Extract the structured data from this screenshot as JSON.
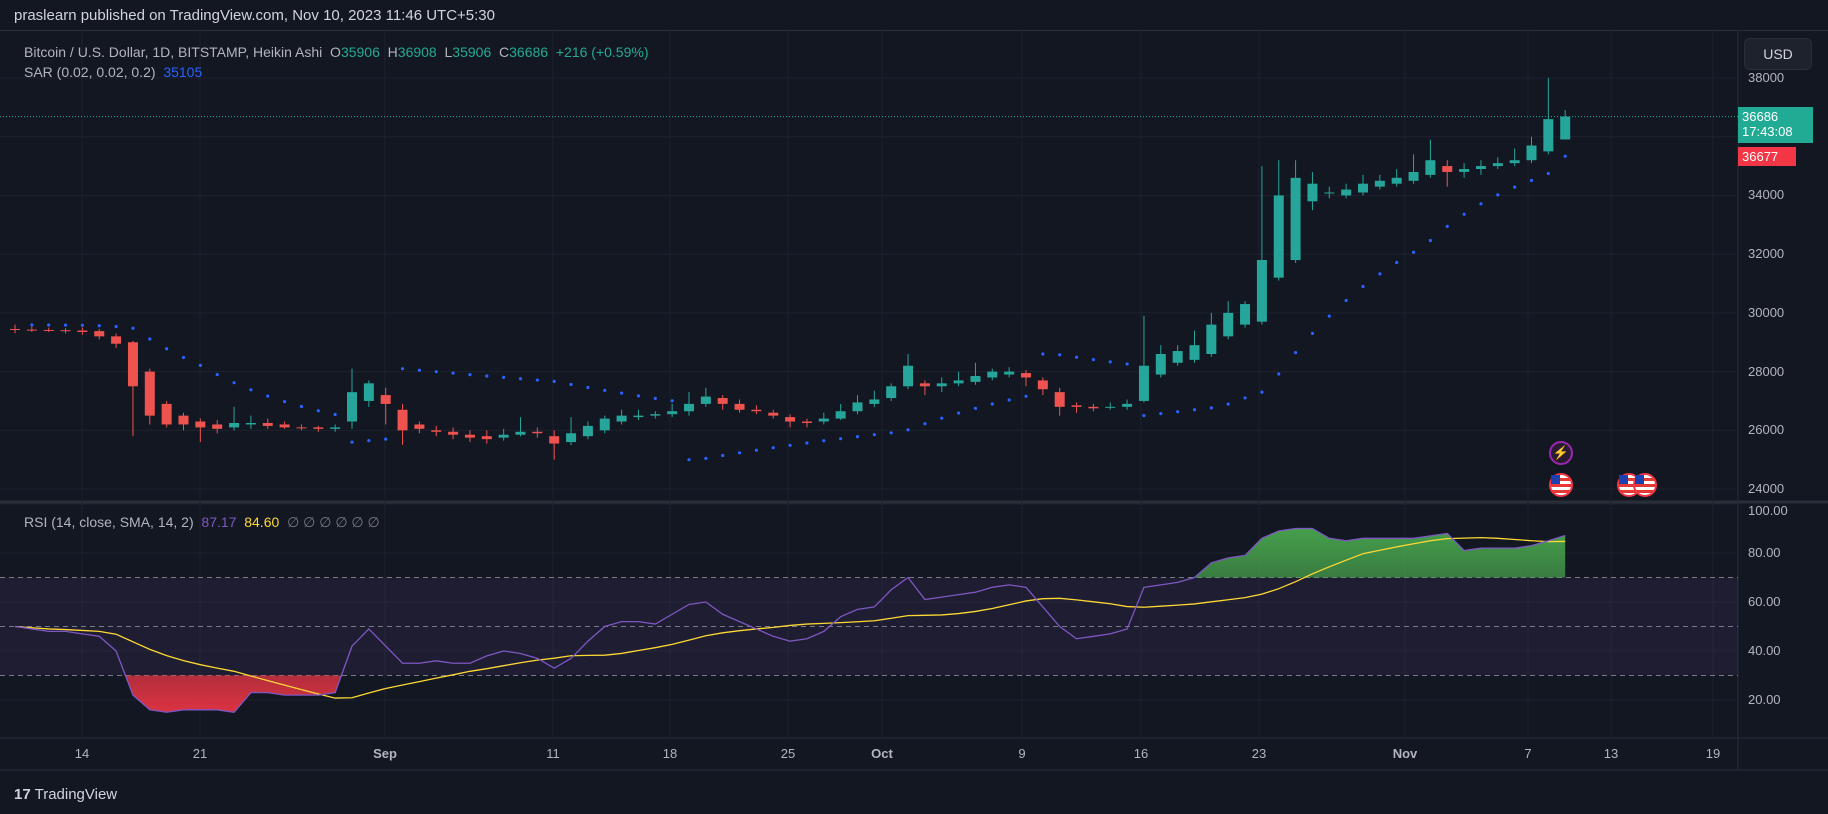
{
  "header": {
    "published": "praslearn published on TradingView.com, Nov 10, 2023 11:46 UTC+5:30"
  },
  "legend": {
    "symbol": "Bitcoin / U.S. Dollar, 1D, BITSTAMP, Heikin Ashi",
    "o_label": "O",
    "o": "35906",
    "h_label": "H",
    "h": "36908",
    "l_label": "L",
    "l": "35906",
    "c_label": "C",
    "c": "36686",
    "change": "+216 (+0.59%)",
    "sar_label": "SAR (0.02, 0.02, 0.2)",
    "sar_value": "35105",
    "rsi_label": "RSI (14, close, SMA, 14, 2)",
    "rsi_value": "87.17",
    "rsi_sma_value": "84.60",
    "rsi_empty": "∅  ∅  ∅  ∅  ∅  ∅"
  },
  "price_axis": {
    "currency": "USD",
    "ticks": [
      "38000",
      "34000",
      "32000",
      "30000",
      "28000",
      "26000",
      "24000"
    ],
    "last_price": "36686",
    "countdown": "17:43:08",
    "prev_close": "36677"
  },
  "rsi_axis": {
    "ticks": [
      "100.00",
      "80.00",
      "60.00",
      "40.00",
      "20.00"
    ]
  },
  "time_axis": {
    "labels": [
      "14",
      "21",
      "Sep",
      "11",
      "18",
      "25",
      "Oct",
      "9",
      "16",
      "23",
      "Nov",
      "7",
      "13",
      "19"
    ]
  },
  "footer": {
    "brand": "TradingView"
  },
  "colors": {
    "up": "#26a69a",
    "down": "#ef5350",
    "sar": "#2962ff",
    "rsi": "#7e57c2",
    "sma": "#fdd835"
  },
  "events": [
    "lightning-icon",
    "us-flag-icon",
    "us-flag-icon",
    "us-flag-icon"
  ],
  "chart_data": {
    "type": "candlestick",
    "title": "Bitcoin / U.S. Dollar, 1D, BITSTAMP, Heikin Ashi",
    "start_date": "Aug 10",
    "end_date": "Nov 10",
    "ylim": [
      23500,
      38600
    ],
    "candles_ohlc": [
      [
        29450,
        29600,
        29300,
        29420
      ],
      [
        29430,
        29550,
        29350,
        29400
      ],
      [
        29420,
        29500,
        29350,
        29410
      ],
      [
        29410,
        29480,
        29300,
        29380
      ],
      [
        29400,
        29500,
        29250,
        29350
      ],
      [
        29380,
        29450,
        29100,
        29200
      ],
      [
        29200,
        29300,
        28800,
        28950
      ],
      [
        29000,
        29050,
        25800,
        27500
      ],
      [
        28000,
        28100,
        26200,
        26500
      ],
      [
        26900,
        27000,
        26100,
        26200
      ],
      [
        26500,
        26600,
        26000,
        26200
      ],
      [
        26300,
        26400,
        25600,
        26100
      ],
      [
        26200,
        26350,
        25900,
        26050
      ],
      [
        26100,
        26800,
        26000,
        26250
      ],
      [
        26200,
        26500,
        26050,
        26250
      ],
      [
        26250,
        26400,
        26050,
        26150
      ],
      [
        26200,
        26300,
        26050,
        26100
      ],
      [
        26100,
        26200,
        26000,
        26080
      ],
      [
        26100,
        26150,
        25950,
        26050
      ],
      [
        26050,
        26200,
        25950,
        26100
      ],
      [
        26300,
        28100,
        26050,
        27300
      ],
      [
        27000,
        27700,
        26800,
        27600
      ],
      [
        27200,
        27450,
        26200,
        26900
      ],
      [
        26700,
        26900,
        25500,
        26000
      ],
      [
        26200,
        26300,
        25900,
        26050
      ],
      [
        26000,
        26150,
        25800,
        25950
      ],
      [
        25950,
        26100,
        25700,
        25850
      ],
      [
        25850,
        26000,
        25600,
        25750
      ],
      [
        25800,
        26000,
        25550,
        25700
      ],
      [
        25750,
        26050,
        25650,
        25850
      ],
      [
        25850,
        26450,
        25800,
        25950
      ],
      [
        25950,
        26100,
        25750,
        25900
      ],
      [
        25800,
        26000,
        25000,
        25550
      ],
      [
        25600,
        26450,
        25500,
        25900
      ],
      [
        25800,
        26300,
        25700,
        26150
      ],
      [
        26000,
        26500,
        25900,
        26400
      ],
      [
        26300,
        26700,
        26200,
        26500
      ],
      [
        26450,
        26700,
        26350,
        26500
      ],
      [
        26500,
        26650,
        26400,
        26550
      ],
      [
        26550,
        26900,
        26450,
        26650
      ],
      [
        26650,
        27300,
        26500,
        26900
      ],
      [
        26900,
        27450,
        26800,
        27150
      ],
      [
        27100,
        27200,
        26700,
        26900
      ],
      [
        26900,
        27050,
        26600,
        26700
      ],
      [
        26700,
        26850,
        26550,
        26650
      ],
      [
        26600,
        26700,
        26400,
        26500
      ],
      [
        26450,
        26550,
        26100,
        26300
      ],
      [
        26300,
        26400,
        26100,
        26250
      ],
      [
        26300,
        26600,
        26200,
        26400
      ],
      [
        26400,
        26900,
        26350,
        26650
      ],
      [
        26650,
        27200,
        26550,
        26950
      ],
      [
        26900,
        27350,
        26800,
        27050
      ],
      [
        27100,
        27600,
        27000,
        27500
      ],
      [
        27500,
        28600,
        27400,
        28200
      ],
      [
        27600,
        27700,
        27200,
        27500
      ],
      [
        27500,
        27800,
        27300,
        27600
      ],
      [
        27600,
        28000,
        27500,
        27700
      ],
      [
        27650,
        28300,
        27550,
        27850
      ],
      [
        27800,
        28100,
        27700,
        28000
      ],
      [
        27900,
        28150,
        27800,
        28000
      ],
      [
        27950,
        28050,
        27500,
        27800
      ],
      [
        27700,
        27800,
        27200,
        27400
      ],
      [
        27300,
        27450,
        26500,
        26800
      ],
      [
        26850,
        26950,
        26600,
        26800
      ],
      [
        26800,
        26900,
        26650,
        26750
      ],
      [
        26800,
        26950,
        26700,
        26800
      ],
      [
        26800,
        27050,
        26700,
        26900
      ],
      [
        27000,
        29900,
        26950,
        28200
      ],
      [
        27900,
        28900,
        27800,
        28600
      ],
      [
        28300,
        28900,
        28200,
        28700
      ],
      [
        28400,
        29400,
        28300,
        28900
      ],
      [
        28600,
        30000,
        28500,
        29600
      ],
      [
        29200,
        30400,
        29100,
        30000
      ],
      [
        29600,
        30400,
        29500,
        30300
      ],
      [
        29700,
        35000,
        29600,
        31800
      ],
      [
        31200,
        35200,
        31100,
        34000
      ],
      [
        31800,
        35200,
        31700,
        34600
      ],
      [
        33800,
        34800,
        33500,
        34400
      ],
      [
        34100,
        34300,
        33900,
        34100
      ],
      [
        34000,
        34400,
        33900,
        34200
      ],
      [
        34100,
        34700,
        34000,
        34400
      ],
      [
        34300,
        34700,
        34200,
        34500
      ],
      [
        34400,
        34900,
        34300,
        34600
      ],
      [
        34500,
        35400,
        34400,
        34800
      ],
      [
        34700,
        35900,
        34600,
        35200
      ],
      [
        35000,
        35200,
        34300,
        34800
      ],
      [
        34800,
        35100,
        34600,
        34900
      ],
      [
        34900,
        35200,
        34700,
        35000
      ],
      [
        35000,
        35300,
        34900,
        35100
      ],
      [
        35100,
        35600,
        35000,
        35200
      ],
      [
        35200,
        36000,
        35100,
        35700
      ],
      [
        35500,
        38000,
        35400,
        36600
      ],
      [
        35906,
        36908,
        35906,
        36686
      ]
    ],
    "rsi": [
      50,
      49,
      48,
      48,
      47,
      46,
      40,
      22,
      16,
      15,
      16,
      16,
      16,
      15,
      23,
      23,
      22,
      22,
      22,
      23,
      42,
      49,
      42,
      35,
      35,
      36,
      35,
      35,
      38,
      40,
      39,
      37,
      33,
      37,
      44,
      50,
      52,
      52,
      51,
      55,
      59,
      60,
      55,
      52,
      49,
      46,
      44,
      45,
      48,
      54,
      57,
      58,
      65,
      70,
      61,
      62,
      63,
      64,
      66,
      67,
      66,
      58,
      50,
      45,
      46,
      47,
      49,
      66,
      67,
      68,
      70,
      76,
      78,
      79,
      86,
      89,
      90,
      90,
      86,
      85,
      86,
      86,
      86,
      86,
      87,
      88,
      81,
      82,
      82,
      82,
      83,
      85,
      87.17
    ],
    "rsi_levels": [
      70,
      50,
      30
    ]
  }
}
